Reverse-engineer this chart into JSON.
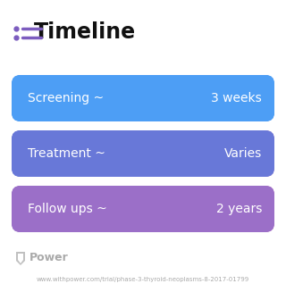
{
  "title": "Timeline",
  "title_fontsize": 17,
  "title_fontweight": "bold",
  "title_color": "#111111",
  "background_color": "#ffffff",
  "icon_color": "#7c5cbf",
  "icon_line_color": "#7c5cbf",
  "rows": [
    {
      "label": "Screening ~",
      "value": "3 weeks",
      "color_left": "#4d9ef5",
      "color_right": "#4d9ef5"
    },
    {
      "label": "Treatment ~",
      "value": "Varies",
      "color_left": "#6878d8",
      "color_right": "#b07ec8"
    },
    {
      "label": "Follow ups ~",
      "value": "2 years",
      "color_left": "#9b6fc8",
      "color_right": "#c078c0"
    }
  ],
  "footer_logo_text": "Power",
  "footer_logo_color": "#aaaaaa",
  "footer_url": "www.withpower.com/trial/phase-3-thyroid-neoplasms-8-2017-01799",
  "footer_url_fontsize": 5.0,
  "footer_logo_fontsize": 9,
  "label_fontsize": 10,
  "value_fontsize": 10
}
